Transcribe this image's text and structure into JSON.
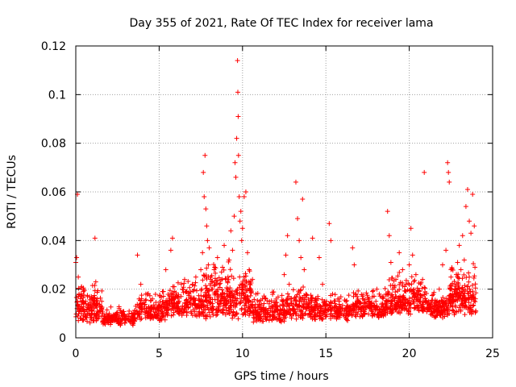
{
  "chart_data": {
    "type": "scatter",
    "title": "Day 355 of 2021, Rate Of TEC Index for receiver lama",
    "xlabel": "GPS time / hours",
    "ylabel": "ROTI / TECUs",
    "xlim": [
      0,
      25
    ],
    "ylim": [
      0,
      0.12
    ],
    "x_ticks": [
      0,
      5,
      10,
      15,
      20,
      25
    ],
    "x_tick_labels": [
      "0",
      "5",
      "10",
      "15",
      "20",
      "25"
    ],
    "y_ticks": [
      0,
      0.02,
      0.04,
      0.06,
      0.08,
      0.1,
      0.12
    ],
    "y_tick_labels": [
      "0",
      "0.02",
      "0.04",
      "0.06",
      "0.08",
      "0.1",
      "0.12"
    ],
    "grid": true,
    "marker": "plus",
    "color": "#ff0000",
    "points": [
      [
        0.0,
        0.031
      ],
      [
        0.05,
        0.033
      ],
      [
        0.08,
        0.012
      ],
      [
        0.1,
        0.059
      ],
      [
        0.12,
        0.009
      ],
      [
        0.15,
        0.025
      ],
      [
        0.2,
        0.018
      ],
      [
        0.25,
        0.012
      ],
      [
        0.3,
        0.008
      ],
      [
        0.35,
        0.021
      ],
      [
        0.4,
        0.015
      ],
      [
        0.45,
        0.019
      ],
      [
        0.5,
        0.011
      ],
      [
        0.6,
        0.014
      ],
      [
        0.7,
        0.017
      ],
      [
        0.8,
        0.01
      ],
      [
        0.9,
        0.013
      ],
      [
        1.0,
        0.016
      ],
      [
        1.1,
        0.012
      ],
      [
        1.15,
        0.041
      ],
      [
        1.2,
        0.023
      ],
      [
        1.3,
        0.011
      ],
      [
        1.4,
        0.009
      ],
      [
        1.5,
        0.013
      ],
      [
        1.6,
        0.01
      ],
      [
        1.8,
        0.008
      ],
      [
        2.0,
        0.01
      ],
      [
        2.2,
        0.007
      ],
      [
        2.4,
        0.009
      ],
      [
        2.6,
        0.012
      ],
      [
        2.8,
        0.01
      ],
      [
        3.0,
        0.008
      ],
      [
        3.2,
        0.011
      ],
      [
        3.4,
        0.009
      ],
      [
        3.6,
        0.013
      ],
      [
        3.7,
        0.034
      ],
      [
        3.8,
        0.016
      ],
      [
        3.9,
        0.022
      ],
      [
        4.0,
        0.014
      ],
      [
        4.2,
        0.018
      ],
      [
        4.4,
        0.012
      ],
      [
        4.6,
        0.016
      ],
      [
        4.8,
        0.009
      ],
      [
        5.0,
        0.013
      ],
      [
        5.2,
        0.019
      ],
      [
        5.4,
        0.028
      ],
      [
        5.5,
        0.015
      ],
      [
        5.7,
        0.036
      ],
      [
        5.8,
        0.041
      ],
      [
        5.9,
        0.021
      ],
      [
        6.0,
        0.012
      ],
      [
        6.2,
        0.015
      ],
      [
        6.4,
        0.02
      ],
      [
        6.6,
        0.013
      ],
      [
        6.8,
        0.018
      ],
      [
        7.0,
        0.022
      ],
      [
        7.2,
        0.025
      ],
      [
        7.4,
        0.016
      ],
      [
        7.5,
        0.028
      ],
      [
        7.6,
        0.035
      ],
      [
        7.65,
        0.068
      ],
      [
        7.7,
        0.058
      ],
      [
        7.75,
        0.075
      ],
      [
        7.8,
        0.053
      ],
      [
        7.85,
        0.046
      ],
      [
        7.9,
        0.04
      ],
      [
        7.95,
        0.03
      ],
      [
        8.0,
        0.037
      ],
      [
        8.1,
        0.025
      ],
      [
        8.2,
        0.02
      ],
      [
        8.3,
        0.028
      ],
      [
        8.4,
        0.018
      ],
      [
        8.5,
        0.033
      ],
      [
        8.6,
        0.022
      ],
      [
        8.7,
        0.015
      ],
      [
        8.8,
        0.029
      ],
      [
        8.9,
        0.038
      ],
      [
        9.0,
        0.024
      ],
      [
        9.1,
        0.017
      ],
      [
        9.2,
        0.032
      ],
      [
        9.3,
        0.044
      ],
      [
        9.4,
        0.036
      ],
      [
        9.5,
        0.05
      ],
      [
        9.55,
        0.072
      ],
      [
        9.6,
        0.066
      ],
      [
        9.65,
        0.082
      ],
      [
        9.7,
        0.114
      ],
      [
        9.72,
        0.101
      ],
      [
        9.74,
        0.091
      ],
      [
        9.76,
        0.075
      ],
      [
        9.8,
        0.058
      ],
      [
        9.85,
        0.048
      ],
      [
        9.9,
        0.052
      ],
      [
        9.95,
        0.04
      ],
      [
        10.0,
        0.045
      ],
      [
        10.1,
        0.058
      ],
      [
        10.2,
        0.06
      ],
      [
        10.3,
        0.035
      ],
      [
        10.4,
        0.028
      ],
      [
        10.5,
        0.02
      ],
      [
        10.6,
        0.024
      ],
      [
        10.8,
        0.018
      ],
      [
        11.0,
        0.013
      ],
      [
        11.2,
        0.016
      ],
      [
        11.4,
        0.011
      ],
      [
        11.6,
        0.014
      ],
      [
        11.8,
        0.009
      ],
      [
        12.0,
        0.012
      ],
      [
        12.2,
        0.008
      ],
      [
        12.4,
        0.015
      ],
      [
        12.5,
        0.026
      ],
      [
        12.6,
        0.034
      ],
      [
        12.7,
        0.042
      ],
      [
        12.8,
        0.022
      ],
      [
        12.9,
        0.016
      ],
      [
        13.0,
        0.012
      ],
      [
        13.2,
        0.064
      ],
      [
        13.3,
        0.049
      ],
      [
        13.4,
        0.04
      ],
      [
        13.5,
        0.033
      ],
      [
        13.6,
        0.057
      ],
      [
        13.7,
        0.028
      ],
      [
        13.8,
        0.018
      ],
      [
        14.0,
        0.014
      ],
      [
        14.2,
        0.041
      ],
      [
        14.4,
        0.016
      ],
      [
        14.6,
        0.033
      ],
      [
        14.8,
        0.022
      ],
      [
        15.0,
        0.014
      ],
      [
        15.2,
        0.047
      ],
      [
        15.3,
        0.04
      ],
      [
        15.4,
        0.018
      ],
      [
        15.6,
        0.013
      ],
      [
        15.8,
        0.016
      ],
      [
        16.0,
        0.012
      ],
      [
        16.2,
        0.015
      ],
      [
        16.4,
        0.011
      ],
      [
        16.6,
        0.037
      ],
      [
        16.7,
        0.03
      ],
      [
        16.8,
        0.018
      ],
      [
        17.0,
        0.014
      ],
      [
        17.2,
        0.017
      ],
      [
        17.4,
        0.013
      ],
      [
        17.6,
        0.016
      ],
      [
        17.8,
        0.019
      ],
      [
        18.0,
        0.015
      ],
      [
        18.2,
        0.018
      ],
      [
        18.4,
        0.014
      ],
      [
        18.6,
        0.018
      ],
      [
        18.7,
        0.052
      ],
      [
        18.8,
        0.042
      ],
      [
        18.9,
        0.031
      ],
      [
        19.0,
        0.02
      ],
      [
        19.2,
        0.024
      ],
      [
        19.4,
        0.035
      ],
      [
        19.6,
        0.028
      ],
      [
        19.8,
        0.022
      ],
      [
        20.0,
        0.03
      ],
      [
        20.1,
        0.045
      ],
      [
        20.2,
        0.034
      ],
      [
        20.4,
        0.026
      ],
      [
        20.6,
        0.019
      ],
      [
        20.8,
        0.024
      ],
      [
        20.9,
        0.068
      ],
      [
        21.0,
        0.015
      ],
      [
        21.2,
        0.012
      ],
      [
        21.4,
        0.01
      ],
      [
        21.6,
        0.013
      ],
      [
        21.8,
        0.02
      ],
      [
        22.0,
        0.03
      ],
      [
        22.2,
        0.036
      ],
      [
        22.3,
        0.072
      ],
      [
        22.35,
        0.068
      ],
      [
        22.4,
        0.064
      ],
      [
        22.5,
        0.025
      ],
      [
        22.6,
        0.018
      ],
      [
        22.8,
        0.022
      ],
      [
        22.9,
        0.031
      ],
      [
        23.0,
        0.038
      ],
      [
        23.1,
        0.028
      ],
      [
        23.2,
        0.042
      ],
      [
        23.3,
        0.032
      ],
      [
        23.4,
        0.054
      ],
      [
        23.5,
        0.061
      ],
      [
        23.6,
        0.048
      ],
      [
        23.7,
        0.043
      ],
      [
        23.8,
        0.059
      ],
      [
        23.9,
        0.046
      ]
    ],
    "dense_bands": [
      {
        "x": [
          0.0,
          1.6
        ],
        "y": [
          0.006,
          0.026
        ],
        "n": 140
      },
      {
        "x": [
          1.6,
          3.6
        ],
        "y": [
          0.005,
          0.014
        ],
        "n": 150
      },
      {
        "x": [
          3.6,
          5.6
        ],
        "y": [
          0.007,
          0.022
        ],
        "n": 160
      },
      {
        "x": [
          5.6,
          7.6
        ],
        "y": [
          0.008,
          0.026
        ],
        "n": 170
      },
      {
        "x": [
          7.6,
          10.6
        ],
        "y": [
          0.007,
          0.035
        ],
        "n": 320
      },
      {
        "x": [
          10.6,
          12.6
        ],
        "y": [
          0.006,
          0.022
        ],
        "n": 180
      },
      {
        "x": [
          12.6,
          14.6
        ],
        "y": [
          0.007,
          0.024
        ],
        "n": 170
      },
      {
        "x": [
          14.6,
          16.6
        ],
        "y": [
          0.007,
          0.02
        ],
        "n": 160
      },
      {
        "x": [
          16.6,
          18.6
        ],
        "y": [
          0.008,
          0.022
        ],
        "n": 160
      },
      {
        "x": [
          18.6,
          21.0
        ],
        "y": [
          0.009,
          0.03
        ],
        "n": 220
      },
      {
        "x": [
          21.0,
          22.4
        ],
        "y": [
          0.008,
          0.02
        ],
        "n": 120
      },
      {
        "x": [
          22.4,
          24.0
        ],
        "y": [
          0.009,
          0.034
        ],
        "n": 180
      }
    ]
  }
}
